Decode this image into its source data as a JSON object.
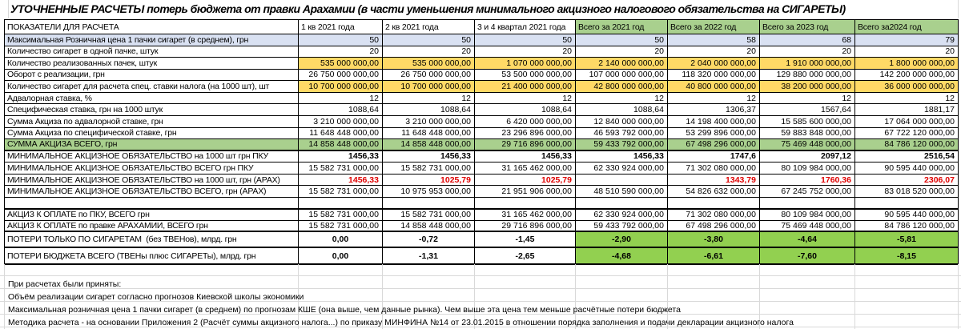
{
  "title": "УТОЧНЕННЫЕ РАСЧЕТЫ потерь бюджета от правки Арахамии (в части уменьшения минимального акцизного налогового обязательства на СИГАРЕТЫ)",
  "colors": {
    "header_green": "#A9D08E",
    "total_row_green": "#A9D08E",
    "loss_green": "#92D050",
    "yellow": "#FFD966",
    "blue": "#D9E1F2",
    "red_value": "#E00000"
  },
  "columns": [
    "ПОКАЗАТЕЛИ ДЛЯ РАСЧЕТА",
    "1 кв 2021 года",
    "2 кв 2021 года",
    "3 и 4 квартал 2021 года",
    "Всего за 2021 год",
    "Всего за 2022 год",
    "Всего за 2023 год",
    "Всего за2024 год"
  ],
  "rows": [
    {
      "label": "Максимальная Розничная цена 1 пачки сигарет (в среднем), грн",
      "values": [
        "50",
        "50",
        "50",
        "50",
        "58",
        "68",
        "79"
      ],
      "bg": "blue",
      "vstyle": "normal",
      "thick": false
    },
    {
      "label": "Количество сигарет в одной пачке, штук",
      "values": [
        "20",
        "20",
        "20",
        "20",
        "20",
        "20",
        "20"
      ],
      "bg": "none",
      "vstyle": "normal",
      "thick": false
    },
    {
      "label": "Количество реализованных пачек, штук",
      "values": [
        "535 000 000,00",
        "535 000 000,00",
        "1 070 000 000,00",
        "2 140 000 000,00",
        "2 040 000 000,00",
        "1 910 000 000,00",
        "1 800 000 000,00"
      ],
      "bg": "yellow",
      "vstyle": "normal",
      "thick": false
    },
    {
      "label": "Оборот с реализации, грн",
      "values": [
        "26 750 000 000,00",
        "26 750 000 000,00",
        "53 500 000 000,00",
        "107 000 000 000,00",
        "118 320 000 000,00",
        "129 880 000 000,00",
        "142 200 000 000,00"
      ],
      "bg": "none",
      "vstyle": "normal",
      "thick": false
    },
    {
      "label": "Количество сигарет для расчета спец. ставки налога (на 1000 шт), шт",
      "values": [
        "10 700 000 000,00",
        "10 700 000 000,00",
        "21 400 000 000,00",
        "42 800 000 000,00",
        "40 800 000 000,00",
        "38 200 000 000,00",
        "36 000 000 000,00"
      ],
      "bg": "yellow",
      "vstyle": "normal",
      "thick": false
    },
    {
      "label": "Адвалорная ставка, %",
      "values": [
        "12",
        "12",
        "12",
        "12",
        "12",
        "12",
        "12"
      ],
      "bg": "none",
      "vstyle": "normal",
      "thick": false
    },
    {
      "label": "Специфическая ставка, грн на 1000 штук",
      "values": [
        "1088,64",
        "1088,64",
        "1088,64",
        "1088,64",
        "1306,37",
        "1567,64",
        "1881,17"
      ],
      "bg": "none",
      "vstyle": "normal",
      "thick": false
    },
    {
      "label": "Сумма Акциза по адвалорной ставке, грн",
      "values": [
        "3 210 000 000,00",
        "3 210 000 000,00",
        "6 420 000 000,00",
        "12 840 000 000,00",
        "14 198 400 000,00",
        "15 585 600 000,00",
        "17 064 000 000,00"
      ],
      "bg": "none",
      "vstyle": "normal",
      "thick": false
    },
    {
      "label": "Сумма Акциза по специфической ставке, грн",
      "values": [
        "11 648 448 000,00",
        "11 648 448 000,00",
        "23 296 896 000,00",
        "46 593 792 000,00",
        "53 299 896 000,00",
        "59 883 848 000,00",
        "67 722 120 000,00"
      ],
      "bg": "none",
      "vstyle": "normal",
      "thick": false
    },
    {
      "label": "СУММА АКЦИЗА ВСЕГО, грн",
      "values": [
        "14 858 448 000,00",
        "14 858 448 000,00",
        "29 716 896 000,00",
        "59 433 792 000,00",
        "67 498 296 000,00",
        "75 469 448 000,00",
        "84 786 120 000,00"
      ],
      "bg": "green",
      "vstyle": "normal",
      "thick": true
    },
    {
      "label": "МИНИМАЛЬНОЕ АКЦИЗНОЕ ОБЯЗАТЕЛЬСТВО на 1000 шт грн ПКУ",
      "values": [
        "1456,33",
        "1456,33",
        "1456,33",
        "1456,33",
        "1747,6",
        "2097,12",
        "2516,54"
      ],
      "bg": "none",
      "vstyle": "bold",
      "thick": false
    },
    {
      "label": "МИНИМАЛЬНОЕ АКЦИЗНОЕ ОБЯЗАТЕЛЬСТВО ВСЕГО грн ПКУ",
      "values": [
        "15 582 731 000,00",
        "15 582 731 000,00",
        "31 165 462 000,00",
        "62 330 924 000,00",
        "71 302 080 000,00",
        "80 109 984 000,00",
        "90 595 440 000,00"
      ],
      "bg": "none",
      "vstyle": "normal",
      "thick": false
    },
    {
      "label": "МИНИМАЛЬНОЕ АКЦИЗНОЕ ОБЯЗАТЕЛЬСТВО на 1000 шт, грн (АРАХ)",
      "values": [
        "1456,33",
        "1025,79",
        "1025,79",
        "",
        "1343,79",
        "1760,36",
        "2306,07"
      ],
      "bg": "none",
      "vstyle": "red",
      "thick": false
    },
    {
      "label": "МИНИМАЛЬНОЕ АКЦИЗНОЕ ОБЯЗАТЕЛЬСТВО ВСЕГО, грн (АРАХ)",
      "values": [
        "15 582 731 000,00",
        "10 975 953 000,00",
        "21 951 906 000,00",
        "48 510 590 000,00",
        "54 826 632 000,00",
        "67 245 752 000,00",
        "83 018 520 000,00"
      ],
      "bg": "none",
      "vstyle": "normal",
      "thick": false
    },
    {
      "label": "",
      "values": [
        "",
        "",
        "",
        "",
        "",
        "",
        ""
      ],
      "bg": "none",
      "vstyle": "normal",
      "thick": true
    },
    {
      "label": "АКЦИЗ К ОПЛАТЕ по ПКУ, ВСЕГО грн",
      "values": [
        "15 582 731 000,00",
        "15 582 731 000,00",
        "31 165 462 000,00",
        "62 330 924 000,00",
        "71 302 080 000,00",
        "80 109 984 000,00",
        "90 595 440 000,00"
      ],
      "bg": "none",
      "vstyle": "normal",
      "thick": false
    },
    {
      "label": "АКЦИЗ К ОПЛАТЕ по правке АРАХАМИИ, ВСЕГО грн",
      "values": [
        "15 582 731 000,00",
        "14 858 448 000,00",
        "29 716 896 000,00",
        "59 433 792 000,00",
        "67 498 296 000,00",
        "75 469 448 000,00",
        "84 786 120 000,00"
      ],
      "bg": "none",
      "vstyle": "normal",
      "thick": true
    },
    {
      "label": "ПОТЕРИ ТОЛЬКО ПО СИГАРЕТАМ  (без ТВЕНов), млрд. грн",
      "values": [
        "0,00",
        "-0,72",
        "-1,45",
        "-2,90",
        "-3,80",
        "-4,64",
        "-5,81"
      ],
      "bg": "loss",
      "vstyle": "loss",
      "thick": true
    },
    {
      "label": "ПОТЕРИ БЮДЖЕТА ВСЕГО (ТВЕНы плюс СИГАРЕТы), млрд. грн",
      "values": [
        "0,00",
        "-1,31",
        "-2,65",
        "-4,68",
        "-6,61",
        "-7,60",
        "-8,15"
      ],
      "bg": "loss",
      "vstyle": "loss",
      "thick": true
    }
  ],
  "footer": {
    "heading": "При расчетах были приняты:",
    "notes": [
      "Объём реализации сигарет согласно прогнозов Киевской школы экономики",
      "Максимальная розничная цена 1 пачки сигарет (в среднем) по прогнозам КШЕ (она выше, чем данные рынка). Чем выше эта цена тем меньше расчётные потери бюджета",
      "Методика расчета - на основании Приложения 2 (Расчёт суммы акцизного налога...) по приказу МИНФИНА №14 от 23.01.2015 в отношении порядка заполнения и подачи декларации акцизного налога"
    ]
  }
}
